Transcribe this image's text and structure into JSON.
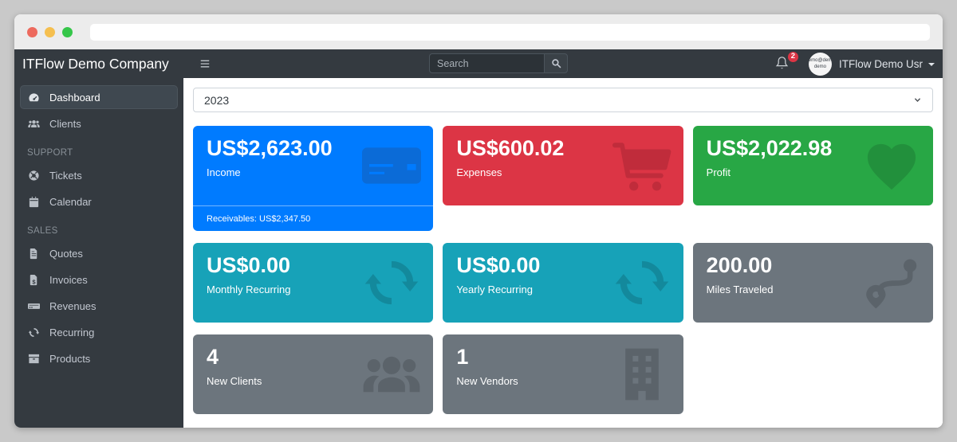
{
  "window_chrome": {
    "address_bar_value": ""
  },
  "sidebar": {
    "brand": "ITFlow Demo Company",
    "sections": [
      {
        "header": "",
        "items": [
          {
            "label": "Dashboard",
            "icon": "gauge-icon",
            "active": true
          },
          {
            "label": "Clients",
            "icon": "users-icon",
            "active": false
          }
        ]
      },
      {
        "header": "SUPPORT",
        "items": [
          {
            "label": "Tickets",
            "icon": "life-ring-icon",
            "active": false
          },
          {
            "label": "Calendar",
            "icon": "calendar-icon",
            "active": false
          }
        ]
      },
      {
        "header": "SALES",
        "items": [
          {
            "label": "Quotes",
            "icon": "file-lines-icon",
            "active": false
          },
          {
            "label": "Invoices",
            "icon": "file-invoice-dollar-icon",
            "active": false
          },
          {
            "label": "Revenues",
            "icon": "money-check-icon",
            "active": false
          },
          {
            "label": "Recurring",
            "icon": "sync-icon",
            "active": false
          },
          {
            "label": "Products",
            "icon": "boxes-icon",
            "active": false
          }
        ]
      }
    ]
  },
  "navbar": {
    "search_placeholder": "Search",
    "notification_count": "2",
    "user_name": "ITFlow Demo Usr",
    "avatar_text_line1": "demo@demo",
    "avatar_text_line2": "demo"
  },
  "main": {
    "year_select": {
      "value": "2023",
      "options": [
        "2023"
      ]
    },
    "cards": [
      {
        "value": "US$2,623.00",
        "label": "Income",
        "footer": "Receivables: US$2,347.50",
        "color": "#007bff",
        "icon_color": "#0b6bd7",
        "icon": "credit-card-icon",
        "tall": true
      },
      {
        "value": "US$600.02",
        "label": "Expenses",
        "color": "#dc3545",
        "icon_color": "#c02c3b",
        "icon": "cart-icon"
      },
      {
        "value": "US$2,022.98",
        "label": "Profit",
        "color": "#28a745",
        "icon_color": "#22903c",
        "icon": "heart-icon"
      },
      {
        "value": "US$0.00",
        "label": "Monthly Recurring",
        "color": "#17a2b8",
        "icon_color": "#13899c",
        "icon": "sync-icon"
      },
      {
        "value": "US$0.00",
        "label": "Yearly Recurring",
        "color": "#17a2b8",
        "icon_color": "#13899c",
        "icon": "sync-icon"
      },
      {
        "value": "200.00",
        "label": "Miles Traveled",
        "color": "#6c757d",
        "icon_color": "#5b636a",
        "icon": "route-icon"
      },
      {
        "value": "4",
        "label": "New Clients",
        "color": "#6c757d",
        "icon_color": "#5b636a",
        "icon": "users-icon"
      },
      {
        "value": "1",
        "label": "New Vendors",
        "color": "#6c757d",
        "icon_color": "#5b636a",
        "icon": "building-icon"
      }
    ]
  }
}
